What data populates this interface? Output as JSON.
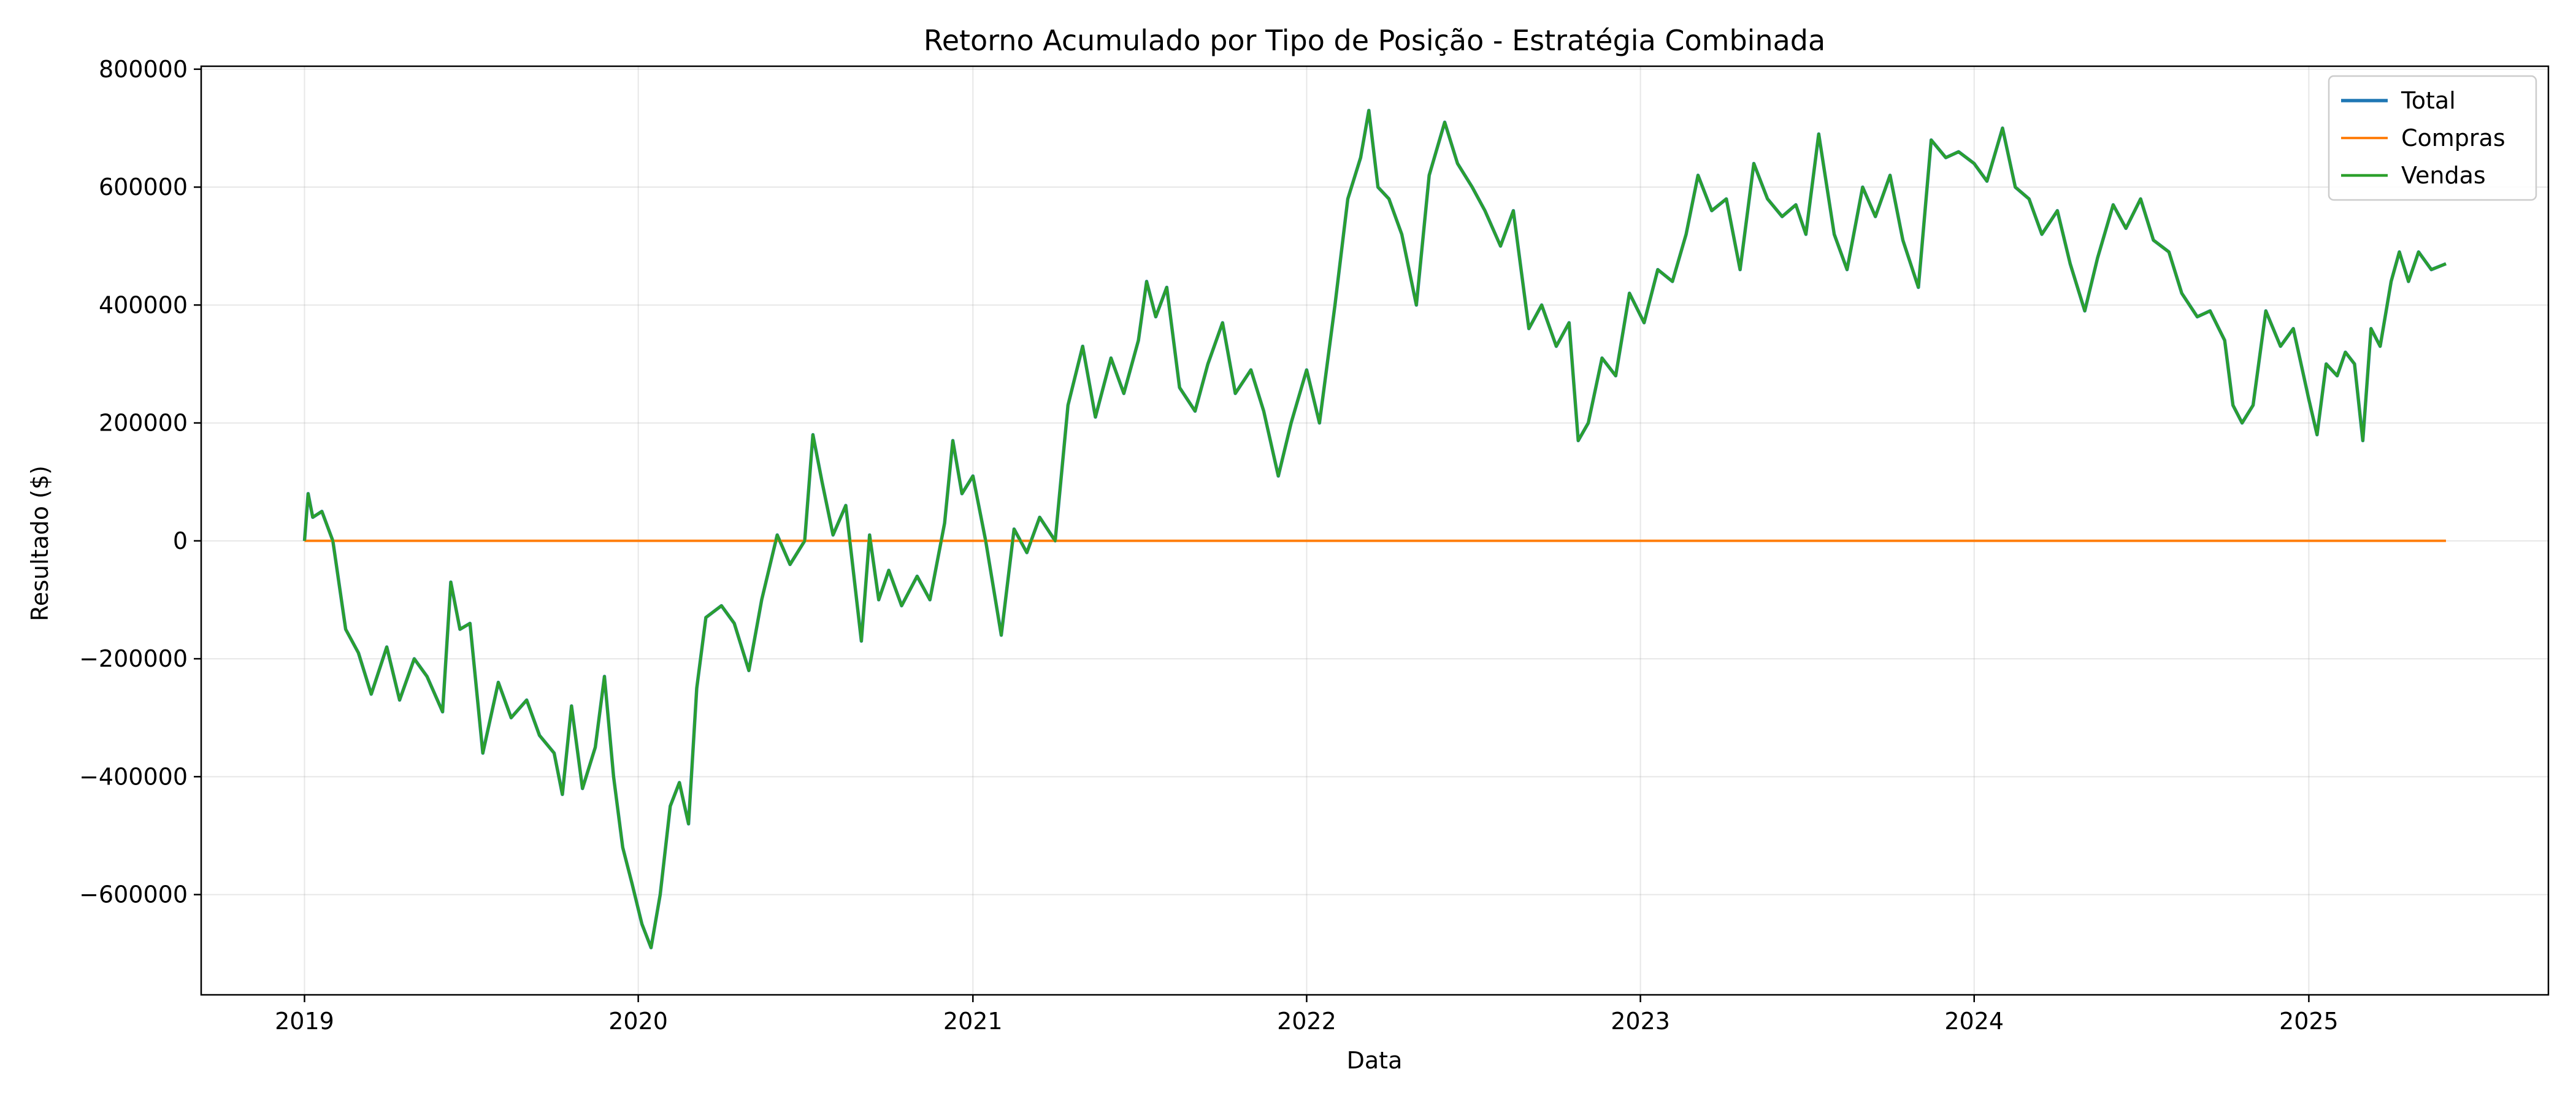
{
  "chart_data": {
    "type": "line",
    "title": "Retorno Acumulado por Tipo de Posição - Estratégia Combinada",
    "xlabel": "Data",
    "ylabel": "Resultado ($)",
    "xlim": [
      "2018-09-10",
      "2025-09-20"
    ],
    "ylim": [
      -770000,
      805000
    ],
    "x_ticks": [
      "2019-01-01",
      "2020-01-01",
      "2021-01-01",
      "2022-01-01",
      "2023-01-01",
      "2024-01-01",
      "2025-01-01"
    ],
    "x_tick_labels": [
      "2019",
      "2020",
      "2021",
      "2022",
      "2023",
      "2024",
      "2025"
    ],
    "y_ticks": [
      -600000,
      -400000,
      -200000,
      0,
      200000,
      400000,
      600000,
      800000
    ],
    "y_tick_labels": [
      "−600000",
      "−400000",
      "−200000",
      "0",
      "200000",
      "400000",
      "600000",
      "800000"
    ],
    "grid": true,
    "legend_position": "top-right",
    "legend_entries": [
      "Total",
      "Compras",
      "Vendas"
    ],
    "series": [
      {
        "name": "Total",
        "color": "#1f77b4",
        "points": [
          [
            "2019-01-01",
            0
          ],
          [
            "2019-01-05",
            80000
          ],
          [
            "2019-01-10",
            40000
          ],
          [
            "2019-01-20",
            50000
          ],
          [
            "2019-02-01",
            0
          ],
          [
            "2019-02-15",
            -150000
          ],
          [
            "2019-03-01",
            -190000
          ],
          [
            "2019-03-15",
            -260000
          ],
          [
            "2019-04-01",
            -180000
          ],
          [
            "2019-04-15",
            -270000
          ],
          [
            "2019-05-01",
            -200000
          ],
          [
            "2019-05-15",
            -230000
          ],
          [
            "2019-06-01",
            -290000
          ],
          [
            "2019-06-10",
            -70000
          ],
          [
            "2019-06-20",
            -150000
          ],
          [
            "2019-07-01",
            -140000
          ],
          [
            "2019-07-15",
            -360000
          ],
          [
            "2019-08-01",
            -240000
          ],
          [
            "2019-08-15",
            -300000
          ],
          [
            "2019-09-01",
            -270000
          ],
          [
            "2019-09-15",
            -330000
          ],
          [
            "2019-10-01",
            -360000
          ],
          [
            "2019-10-10",
            -430000
          ],
          [
            "2019-10-20",
            -280000
          ],
          [
            "2019-11-01",
            -420000
          ],
          [
            "2019-11-15",
            -350000
          ],
          [
            "2019-11-25",
            -230000
          ],
          [
            "2019-12-05",
            -400000
          ],
          [
            "2019-12-15",
            -520000
          ],
          [
            "2019-12-25",
            -580000
          ],
          [
            "2020-01-05",
            -650000
          ],
          [
            "2020-01-15",
            -690000
          ],
          [
            "2020-01-25",
            -600000
          ],
          [
            "2020-02-05",
            -450000
          ],
          [
            "2020-02-15",
            -410000
          ],
          [
            "2020-02-25",
            -480000
          ],
          [
            "2020-03-05",
            -250000
          ],
          [
            "2020-03-15",
            -130000
          ],
          [
            "2020-04-01",
            -110000
          ],
          [
            "2020-04-15",
            -140000
          ],
          [
            "2020-05-01",
            -220000
          ],
          [
            "2020-05-15",
            -100000
          ],
          [
            "2020-06-01",
            10000
          ],
          [
            "2020-06-15",
            -40000
          ],
          [
            "2020-07-01",
            0
          ],
          [
            "2020-07-10",
            180000
          ],
          [
            "2020-07-20",
            100000
          ],
          [
            "2020-08-01",
            10000
          ],
          [
            "2020-08-15",
            60000
          ],
          [
            "2020-09-01",
            -170000
          ],
          [
            "2020-09-10",
            10000
          ],
          [
            "2020-09-20",
            -100000
          ],
          [
            "2020-10-01",
            -50000
          ],
          [
            "2020-10-15",
            -110000
          ],
          [
            "2020-11-01",
            -60000
          ],
          [
            "2020-11-15",
            -100000
          ],
          [
            "2020-12-01",
            30000
          ],
          [
            "2020-12-10",
            170000
          ],
          [
            "2020-12-20",
            80000
          ],
          [
            "2021-01-01",
            110000
          ],
          [
            "2021-01-15",
            0
          ],
          [
            "2021-02-01",
            -160000
          ],
          [
            "2021-02-15",
            20000
          ],
          [
            "2021-03-01",
            -20000
          ],
          [
            "2021-03-15",
            40000
          ],
          [
            "2021-04-01",
            0
          ],
          [
            "2021-04-15",
            230000
          ],
          [
            "2021-05-01",
            330000
          ],
          [
            "2021-05-15",
            210000
          ],
          [
            "2021-06-01",
            310000
          ],
          [
            "2021-06-15",
            250000
          ],
          [
            "2021-07-01",
            340000
          ],
          [
            "2021-07-10",
            440000
          ],
          [
            "2021-07-20",
            380000
          ],
          [
            "2021-08-01",
            430000
          ],
          [
            "2021-08-15",
            260000
          ],
          [
            "2021-09-01",
            220000
          ],
          [
            "2021-09-15",
            300000
          ],
          [
            "2021-10-01",
            370000
          ],
          [
            "2021-10-15",
            250000
          ],
          [
            "2021-11-01",
            290000
          ],
          [
            "2021-11-15",
            220000
          ],
          [
            "2021-12-01",
            110000
          ],
          [
            "2021-12-15",
            200000
          ],
          [
            "2022-01-01",
            290000
          ],
          [
            "2022-01-15",
            200000
          ],
          [
            "2022-02-01",
            400000
          ],
          [
            "2022-02-15",
            580000
          ],
          [
            "2022-03-01",
            650000
          ],
          [
            "2022-03-10",
            730000
          ],
          [
            "2022-03-20",
            600000
          ],
          [
            "2022-04-01",
            580000
          ],
          [
            "2022-04-15",
            520000
          ],
          [
            "2022-05-01",
            400000
          ],
          [
            "2022-05-15",
            620000
          ],
          [
            "2022-06-01",
            710000
          ],
          [
            "2022-06-15",
            640000
          ],
          [
            "2022-07-01",
            600000
          ],
          [
            "2022-07-15",
            560000
          ],
          [
            "2022-08-01",
            500000
          ],
          [
            "2022-08-15",
            560000
          ],
          [
            "2022-09-01",
            360000
          ],
          [
            "2022-09-15",
            400000
          ],
          [
            "2022-10-01",
            330000
          ],
          [
            "2022-10-15",
            370000
          ],
          [
            "2022-10-25",
            170000
          ],
          [
            "2022-11-05",
            200000
          ],
          [
            "2022-11-20",
            310000
          ],
          [
            "2022-12-05",
            280000
          ],
          [
            "2022-12-20",
            420000
          ],
          [
            "2023-01-05",
            370000
          ],
          [
            "2023-01-20",
            460000
          ],
          [
            "2023-02-05",
            440000
          ],
          [
            "2023-02-20",
            520000
          ],
          [
            "2023-03-05",
            620000
          ],
          [
            "2023-03-20",
            560000
          ],
          [
            "2023-04-05",
            580000
          ],
          [
            "2023-04-20",
            460000
          ],
          [
            "2023-05-05",
            640000
          ],
          [
            "2023-05-20",
            580000
          ],
          [
            "2023-06-05",
            550000
          ],
          [
            "2023-06-20",
            570000
          ],
          [
            "2023-07-01",
            520000
          ],
          [
            "2023-07-15",
            690000
          ],
          [
            "2023-08-01",
            520000
          ],
          [
            "2023-08-15",
            460000
          ],
          [
            "2023-09-01",
            600000
          ],
          [
            "2023-09-15",
            550000
          ],
          [
            "2023-10-01",
            620000
          ],
          [
            "2023-10-15",
            510000
          ],
          [
            "2023-11-01",
            430000
          ],
          [
            "2023-11-15",
            680000
          ],
          [
            "2023-12-01",
            650000
          ],
          [
            "2023-12-15",
            660000
          ],
          [
            "2024-01-01",
            640000
          ],
          [
            "2024-01-15",
            610000
          ],
          [
            "2024-02-01",
            700000
          ],
          [
            "2024-02-15",
            600000
          ],
          [
            "2024-03-01",
            580000
          ],
          [
            "2024-03-15",
            520000
          ],
          [
            "2024-04-01",
            560000
          ],
          [
            "2024-04-15",
            470000
          ],
          [
            "2024-05-01",
            390000
          ],
          [
            "2024-05-15",
            480000
          ],
          [
            "2024-06-01",
            570000
          ],
          [
            "2024-06-15",
            530000
          ],
          [
            "2024-07-01",
            580000
          ],
          [
            "2024-07-15",
            510000
          ],
          [
            "2024-08-01",
            490000
          ],
          [
            "2024-08-15",
            420000
          ],
          [
            "2024-09-01",
            380000
          ],
          [
            "2024-09-15",
            390000
          ],
          [
            "2024-10-01",
            340000
          ],
          [
            "2024-10-10",
            230000
          ],
          [
            "2024-10-20",
            200000
          ],
          [
            "2024-11-01",
            230000
          ],
          [
            "2024-11-15",
            390000
          ],
          [
            "2024-12-01",
            330000
          ],
          [
            "2024-12-15",
            360000
          ],
          [
            "2025-01-01",
            240000
          ],
          [
            "2025-01-10",
            180000
          ],
          [
            "2025-01-20",
            300000
          ],
          [
            "2025-02-01",
            280000
          ],
          [
            "2025-02-10",
            320000
          ],
          [
            "2025-02-20",
            300000
          ],
          [
            "2025-03-01",
            170000
          ],
          [
            "2025-03-10",
            360000
          ],
          [
            "2025-03-20",
            330000
          ],
          [
            "2025-04-01",
            440000
          ],
          [
            "2025-04-10",
            490000
          ],
          [
            "2025-04-20",
            440000
          ],
          [
            "2025-05-01",
            490000
          ],
          [
            "2025-05-15",
            460000
          ],
          [
            "2025-05-31",
            470000
          ]
        ]
      },
      {
        "name": "Compras",
        "color": "#ff7f0e",
        "points": [
          [
            "2019-01-01",
            0
          ],
          [
            "2025-05-31",
            0
          ]
        ]
      },
      {
        "name": "Vendas",
        "color": "#2ca02c",
        "same_as": "Total"
      }
    ]
  }
}
